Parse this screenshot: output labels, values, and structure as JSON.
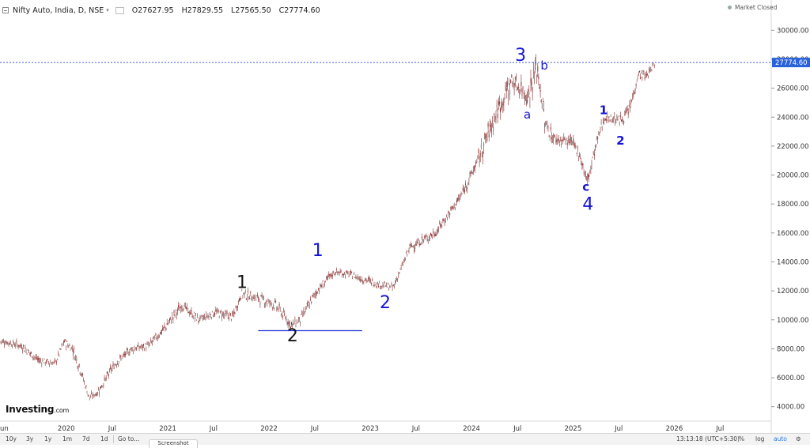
{
  "header": {
    "symbol": "Nifty Auto, India, D, NSE",
    "open": "O27627.95",
    "high": "H27829.55",
    "low": "L27565.50",
    "close": "C27774.60",
    "market_status": "Market Closed"
  },
  "price_badge": "27774.60",
  "footer": {
    "ranges": [
      "10y",
      "3y",
      "1y",
      "1m",
      "7d",
      "1d",
      "Go to..."
    ],
    "time": "13:13:18 (UTC+5:30)",
    "options": [
      "%",
      "log",
      "auto"
    ],
    "screenshot_tab": "Screenshot"
  },
  "logo": {
    "main": "Investing",
    "suffix": ".com"
  },
  "colors": {
    "candles": "#8b2c2c",
    "wave_blue": "#1414d9",
    "wave_black": "#111111",
    "current_line": "#3b5bdb",
    "badge": "#2962d9"
  },
  "chart_data": {
    "type": "candlestick",
    "title": "Nifty Auto, India, D, NSE",
    "ylim": [
      3000,
      31000
    ],
    "y_ticks": [
      "4000.00",
      "6000.00",
      "8000.00",
      "10000.00",
      "12000.00",
      "14000.00",
      "16000.00",
      "18000.00",
      "20000.00",
      "22000.00",
      "24000.00",
      "26000.00",
      "28000.00",
      "30000.00"
    ],
    "x_labels": [
      "un",
      "2020",
      "Jul",
      "2021",
      "Jul",
      "2022",
      "Jul",
      "2023",
      "Jul",
      "2024",
      "Jul",
      "2025",
      "Jul",
      "2026",
      "Jul"
    ],
    "x": [
      "2019-06",
      "2019-08",
      "2019-10",
      "2019-12",
      "2020-01",
      "2020-02",
      "2020-03",
      "2020-04",
      "2020-05",
      "2020-07",
      "2020-09",
      "2020-11",
      "2021-01",
      "2021-03",
      "2021-05",
      "2021-07",
      "2021-09",
      "2021-10",
      "2021-12",
      "2022-02",
      "2022-04",
      "2022-05",
      "2022-07",
      "2022-09",
      "2022-11",
      "2022-12",
      "2023-02",
      "2023-04",
      "2023-06",
      "2023-09",
      "2023-12",
      "2024-02",
      "2024-04",
      "2024-06",
      "2024-07",
      "2024-08",
      "2024-09",
      "2024-10",
      "2024-11",
      "2025-01",
      "2025-02",
      "2025-03",
      "2025-04",
      "2025-05",
      "2025-07",
      "2025-08",
      "2025-09",
      "2025-10",
      "2025-11"
    ],
    "close": [
      8500,
      8200,
      7200,
      7000,
      8500,
      8000,
      6500,
      4600,
      5000,
      6900,
      8000,
      8200,
      9500,
      11000,
      10000,
      10500,
      10200,
      11800,
      11500,
      11000,
      9600,
      10000,
      12000,
      13300,
      13100,
      12900,
      12500,
      12200,
      15000,
      16000,
      18500,
      21000,
      24000,
      26500,
      26000,
      25500,
      27500,
      23500,
      22500,
      22300,
      21500,
      19500,
      22000,
      24000,
      23800,
      24500,
      27000,
      26800,
      27774.6
    ],
    "high": [
      8800,
      8600,
      7600,
      7400,
      8800,
      8600,
      7000,
      5000,
      5400,
      7300,
      8300,
      8600,
      10200,
      11200,
      10400,
      10900,
      10800,
      12200,
      11900,
      11500,
      10200,
      10400,
      12500,
      13600,
      13400,
      13200,
      12900,
      12500,
      15400,
      16400,
      19000,
      21500,
      24500,
      27000,
      26600,
      27200,
      27600,
      24500,
      23200,
      22800,
      22000,
      20600,
      22500,
      24300,
      24200,
      25200,
      27300,
      27400,
      27829.55
    ],
    "low": [
      8200,
      7800,
      6900,
      6700,
      8200,
      7600,
      6000,
      4500,
      4600,
      6500,
      7600,
      7900,
      9200,
      10300,
      9700,
      10200,
      9900,
      11300,
      11100,
      10500,
      9300,
      9500,
      11600,
      12900,
      12800,
      12500,
      12100,
      11900,
      14600,
      15600,
      18000,
      20500,
      22000,
      25500,
      25200,
      24800,
      25300,
      23000,
      22000,
      21800,
      21000,
      19200,
      21200,
      23400,
      23300,
      24000,
      26400,
      26300,
      27565.5
    ],
    "current_price": 27774.6,
    "annotations": [
      {
        "text": "1",
        "date": "2021-10",
        "price": 12200,
        "color": "black"
      },
      {
        "text": "2",
        "date": "2022-04",
        "price": 8500,
        "color": "black"
      },
      {
        "text": "1",
        "date": "2022-07",
        "price": 14400,
        "color": "blue"
      },
      {
        "text": "2",
        "date": "2023-03",
        "price": 10800,
        "color": "blue"
      },
      {
        "text": "3",
        "date": "2024-07",
        "price": 27900,
        "color": "blue"
      },
      {
        "text": "a",
        "date": "2024-08",
        "price": 23900,
        "color": "blue"
      },
      {
        "text": "b",
        "date": "2024-10",
        "price": 27300,
        "color": "blue"
      },
      {
        "text": "c",
        "date": "2025-03",
        "price": 18900,
        "color": "blue"
      },
      {
        "text": "4",
        "date": "2025-03",
        "price": 17600,
        "color": "blue"
      },
      {
        "text": "1",
        "date": "2025-05",
        "price": 24200,
        "color": "blue"
      },
      {
        "text": "2",
        "date": "2025-07",
        "price": 22100,
        "color": "blue"
      }
    ],
    "support_line": {
      "price": 9250,
      "from": "2021-12",
      "to": "2022-11"
    }
  }
}
